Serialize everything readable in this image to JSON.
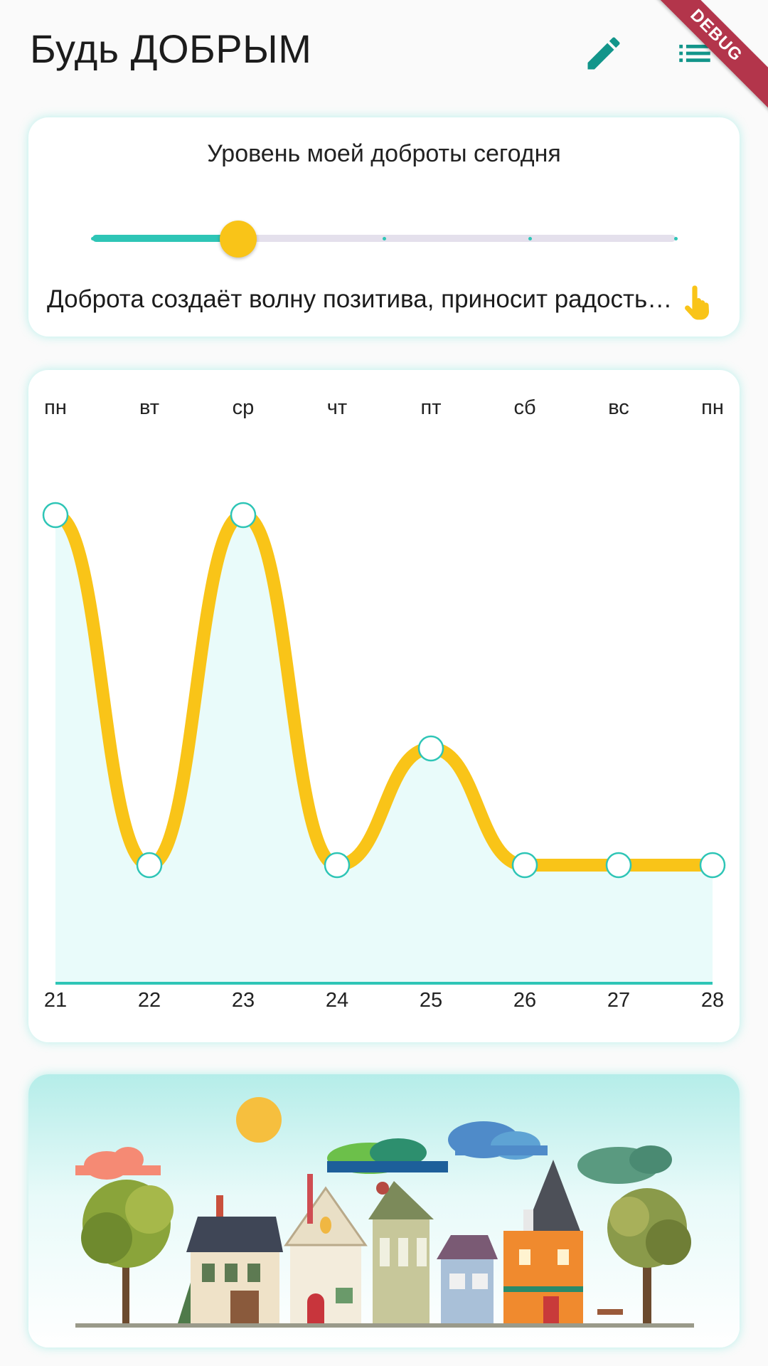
{
  "app": {
    "title": "Будь ДОБРЫМ",
    "debug_label": "DEBUG",
    "accent": "#12958a",
    "icons": {
      "edit": "pencil-icon",
      "list": "list-icon",
      "tap": "tap-hand-icon"
    }
  },
  "kindness_card": {
    "title": "Уровень моей доброты сегодня",
    "slider": {
      "min": 0,
      "max": 4,
      "value": 1
    },
    "quote": "Доброта создаёт волну позитива, приносит радость и вдохновение окружающим"
  },
  "chart_data": {
    "type": "line",
    "categories_top": [
      "пн",
      "вт",
      "ср",
      "чт",
      "пт",
      "сб",
      "вс",
      "пн"
    ],
    "categories": [
      "21",
      "22",
      "23",
      "24",
      "25",
      "26",
      "27",
      "28"
    ],
    "series": [
      {
        "values": [
          4,
          1,
          4,
          1,
          2,
          1,
          1,
          1
        ]
      }
    ],
    "ylim": [
      0,
      5
    ],
    "line_color": "#f9c418",
    "point_color": "#2ec5b6",
    "area_color": "#e9fbfa",
    "grid": false
  }
}
